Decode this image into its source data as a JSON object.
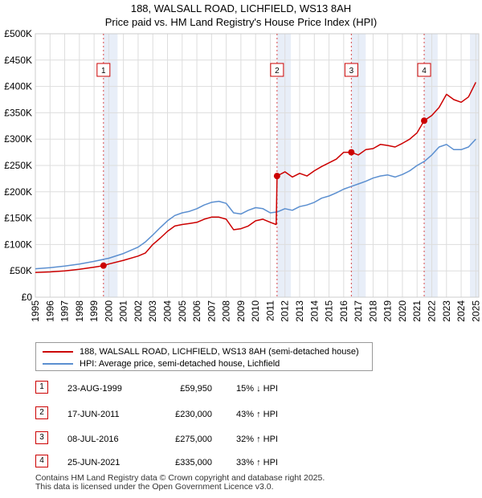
{
  "title_line1": "188, WALSALL ROAD, LICHFIELD, WS13 8AH",
  "title_line2": "Price paid vs. HM Land Registry's House Price Index (HPI)",
  "colors": {
    "price_line": "#cc0000",
    "hpi_line": "#5b8fd0",
    "band_fill": "#e8eef8",
    "marker_border": "#cc0000",
    "grid": "#dddddd"
  },
  "legend": {
    "price_label": "188, WALSALL ROAD, LICHFIELD, WS13 8AH (semi-detached house)",
    "hpi_label": "HPI: Average price, semi-detached house, Lichfield"
  },
  "transactions": [
    {
      "id": "1",
      "date": "23-AUG-1999",
      "price": "£59,950",
      "hpi": "15% ↓ HPI"
    },
    {
      "id": "2",
      "date": "17-JUN-2011",
      "price": "£230,000",
      "hpi": "43% ↑ HPI"
    },
    {
      "id": "3",
      "date": "08-JUL-2016",
      "price": "£275,000",
      "hpi": "32% ↑ HPI"
    },
    {
      "id": "4",
      "date": "25-JUN-2021",
      "price": "£335,000",
      "hpi": "33% ↑ HPI"
    }
  ],
  "footer": "Contains HM Land Registry data © Crown copyright and database right 2025.\nThis data is licensed under the Open Government Licence v3.0.",
  "chart_data": {
    "type": "line",
    "title": "188, WALSALL ROAD, LICHFIELD, WS13 8AH — Price paid vs. HM Land Registry's House Price Index (HPI)",
    "xlim": [
      1995,
      2025.2
    ],
    "ylim": [
      0,
      500000
    ],
    "x_ticks": [
      "1995",
      "1996",
      "1997",
      "1998",
      "1999",
      "2000",
      "2001",
      "2002",
      "2003",
      "2004",
      "2005",
      "2006",
      "2007",
      "2008",
      "2009",
      "2010",
      "2011",
      "2012",
      "2013",
      "2014",
      "2015",
      "2016",
      "2017",
      "2018",
      "2019",
      "2020",
      "2021",
      "2022",
      "2023",
      "2024",
      "2025"
    ],
    "y_ticks": [
      {
        "value": 0,
        "label": "£0"
      },
      {
        "value": 50000,
        "label": "£50K"
      },
      {
        "value": 100000,
        "label": "£100K"
      },
      {
        "value": 150000,
        "label": "£150K"
      },
      {
        "value": 200000,
        "label": "£200K"
      },
      {
        "value": 250000,
        "label": "£250K"
      },
      {
        "value": 300000,
        "label": "£300K"
      },
      {
        "value": 350000,
        "label": "£350K"
      },
      {
        "value": 400000,
        "label": "£400K"
      },
      {
        "value": 450000,
        "label": "£450K"
      },
      {
        "value": 500000,
        "label": "£500K"
      }
    ],
    "shaded_bands": [
      [
        1999.64,
        2000.6
      ],
      [
        2011.46,
        2012.4
      ],
      [
        2016.52,
        2017.5
      ],
      [
        2021.48,
        2022.4
      ],
      [
        2024.6,
        2025.2
      ]
    ],
    "sale_markers": [
      {
        "label": "1",
        "x": 1999.64,
        "y": 59950
      },
      {
        "label": "2",
        "x": 2011.46,
        "y": 230000
      },
      {
        "label": "3",
        "x": 2016.52,
        "y": 275000
      },
      {
        "label": "4",
        "x": 2021.48,
        "y": 335000
      }
    ],
    "series": [
      {
        "name": "188, WALSALL ROAD, LICHFIELD, WS13 8AH (semi-detached house)",
        "x": [
          1995,
          1996,
          1997,
          1998,
          1999,
          1999.64,
          2000,
          2001,
          2002,
          2002.5,
          2003,
          2003.5,
          2004,
          2004.5,
          2005,
          2005.5,
          2006,
          2006.5,
          2007,
          2007.5,
          2008,
          2008.5,
          2009,
          2009.5,
          2010,
          2010.5,
          2011,
          2011.4,
          2011.46,
          2012,
          2012.5,
          2013,
          2013.5,
          2014,
          2014.5,
          2015,
          2015.5,
          2016,
          2016.52,
          2017,
          2017.5,
          2018,
          2018.5,
          2019,
          2019.5,
          2020,
          2020.5,
          2021,
          2021.48,
          2022,
          2022.5,
          2023,
          2023.5,
          2024,
          2024.5,
          2025
        ],
        "y": [
          47000,
          48000,
          50000,
          53000,
          57000,
          59950,
          63000,
          70000,
          78000,
          84000,
          100000,
          112000,
          125000,
          135000,
          138000,
          140000,
          142000,
          148000,
          152000,
          152000,
          148000,
          128000,
          130000,
          135000,
          145000,
          148000,
          142000,
          138000,
          230000,
          238000,
          228000,
          235000,
          230000,
          240000,
          248000,
          255000,
          262000,
          275000,
          275000,
          270000,
          280000,
          282000,
          290000,
          288000,
          285000,
          292000,
          300000,
          312000,
          335000,
          345000,
          360000,
          385000,
          375000,
          370000,
          380000,
          408000
        ]
      },
      {
        "name": "HPI: Average price, semi-detached house, Lichfield",
        "x": [
          1995,
          1996,
          1997,
          1998,
          1999,
          2000,
          2001,
          2002,
          2002.5,
          2003,
          2003.5,
          2004,
          2004.5,
          2005,
          2005.5,
          2006,
          2006.5,
          2007,
          2007.5,
          2008,
          2008.5,
          2009,
          2009.5,
          2010,
          2010.5,
          2011,
          2011.5,
          2012,
          2012.5,
          2013,
          2013.5,
          2014,
          2014.5,
          2015,
          2015.5,
          2016,
          2016.5,
          2017,
          2017.5,
          2018,
          2018.5,
          2019,
          2019.5,
          2020,
          2020.5,
          2021,
          2021.5,
          2022,
          2022.5,
          2023,
          2023.5,
          2024,
          2024.5,
          2025
        ],
        "y": [
          54000,
          56000,
          59000,
          63000,
          68000,
          74000,
          83000,
          95000,
          105000,
          118000,
          132000,
          145000,
          155000,
          160000,
          163000,
          168000,
          175000,
          180000,
          182000,
          178000,
          160000,
          158000,
          165000,
          170000,
          168000,
          160000,
          162000,
          168000,
          165000,
          172000,
          175000,
          180000,
          188000,
          192000,
          198000,
          205000,
          210000,
          215000,
          220000,
          226000,
          230000,
          232000,
          228000,
          233000,
          240000,
          250000,
          258000,
          270000,
          285000,
          290000,
          280000,
          280000,
          285000,
          300000
        ]
      }
    ]
  }
}
